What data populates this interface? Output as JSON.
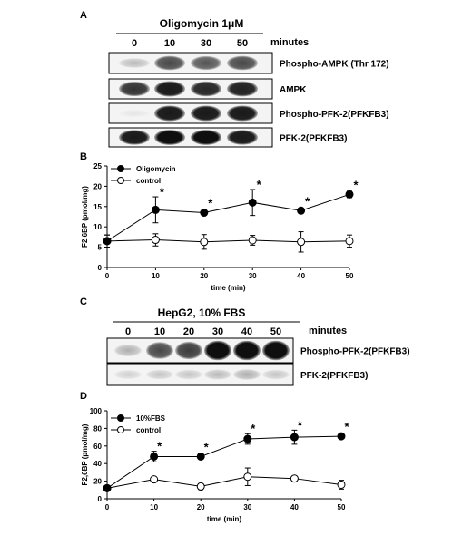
{
  "panel_a": {
    "letter": "A",
    "condition": "Oligomycin 1μM",
    "lanes": [
      "0",
      "10",
      "30",
      "50"
    ],
    "lanes_unit": "minutes",
    "blots": [
      {
        "label": "Phospho-AMPK (Thr 172)",
        "intensity": [
          0.25,
          0.75,
          0.7,
          0.75
        ]
      },
      {
        "label": "AMPK",
        "intensity": [
          0.85,
          0.95,
          0.9,
          0.92
        ]
      },
      {
        "label": "Phospho-PFK-2(PFKFB3)",
        "intensity": [
          0.05,
          0.95,
          0.95,
          0.95
        ]
      },
      {
        "label": "PFK-2(PFKFB3)",
        "intensity": [
          0.95,
          1.0,
          1.0,
          0.95
        ]
      }
    ]
  },
  "panel_c": {
    "letter": "C",
    "condition": "HepG2, 10% FBS",
    "lanes": [
      "0",
      "10",
      "20",
      "30",
      "40",
      "50"
    ],
    "lanes_unit": "minutes",
    "blots": [
      {
        "label": "Phospho-PFK-2(PFKFB3)",
        "intensity": [
          0.3,
          0.75,
          0.8,
          1.0,
          1.0,
          1.0
        ]
      },
      {
        "label": "PFK-2(PFKFB3)",
        "intensity": [
          0.15,
          0.2,
          0.2,
          0.25,
          0.3,
          0.2
        ]
      }
    ]
  },
  "chart_data": [
    {
      "panel": "B",
      "type": "line",
      "xlabel": "time (min)",
      "ylabel": "F2,6BP (pmol/mg)",
      "xlim": [
        0,
        50
      ],
      "ylim": [
        0,
        25
      ],
      "xticks": [
        "0",
        "10",
        "20",
        "30",
        "40",
        "50"
      ],
      "yticks": [
        "0",
        "5",
        "10",
        "15",
        "20",
        "25"
      ],
      "legend_position": "top-left",
      "series": [
        {
          "name": "Oligomycin",
          "marker": "filled",
          "x": [
            0,
            10,
            20,
            30,
            40,
            50
          ],
          "y": [
            6.5,
            14.2,
            13.5,
            16.0,
            14.0,
            18.0
          ],
          "err": [
            1.5,
            3.2,
            0.5,
            3.2,
            0.5,
            0.8
          ]
        },
        {
          "name": "control",
          "marker": "open",
          "x": [
            0,
            10,
            20,
            30,
            40,
            50
          ],
          "y": [
            6.5,
            6.8,
            6.3,
            6.7,
            6.3,
            6.5
          ],
          "err": [
            1.5,
            1.5,
            1.8,
            1.2,
            2.5,
            1.5
          ]
        }
      ],
      "significance": {
        "mark": "*",
        "x": [
          10,
          20,
          30,
          40,
          50
        ]
      }
    },
    {
      "panel": "D",
      "type": "line",
      "xlabel": "time (min)",
      "ylabel": "F2,6BP (pmol/mg)",
      "xlim": [
        0,
        50
      ],
      "ylim": [
        0,
        100
      ],
      "xticks": [
        "0",
        "10",
        "20",
        "30",
        "40",
        "50"
      ],
      "yticks": [
        "0",
        "20",
        "40",
        "60",
        "80",
        "100"
      ],
      "legend_position": "top-left",
      "series": [
        {
          "name": "10%FBS",
          "marker": "filled",
          "x": [
            0,
            10,
            20,
            30,
            40,
            50
          ],
          "y": [
            12,
            48,
            48,
            68,
            70,
            71
          ],
          "err": [
            3,
            6,
            1,
            6,
            8,
            1
          ]
        },
        {
          "name": "control",
          "marker": "open",
          "x": [
            0,
            10,
            20,
            30,
            40,
            50
          ],
          "y": [
            12,
            22,
            14,
            25,
            23,
            16
          ],
          "err": [
            3,
            2,
            5,
            10,
            1,
            5
          ]
        }
      ],
      "significance": {
        "mark": "*",
        "x": [
          10,
          20,
          30,
          40,
          50
        ]
      }
    }
  ]
}
